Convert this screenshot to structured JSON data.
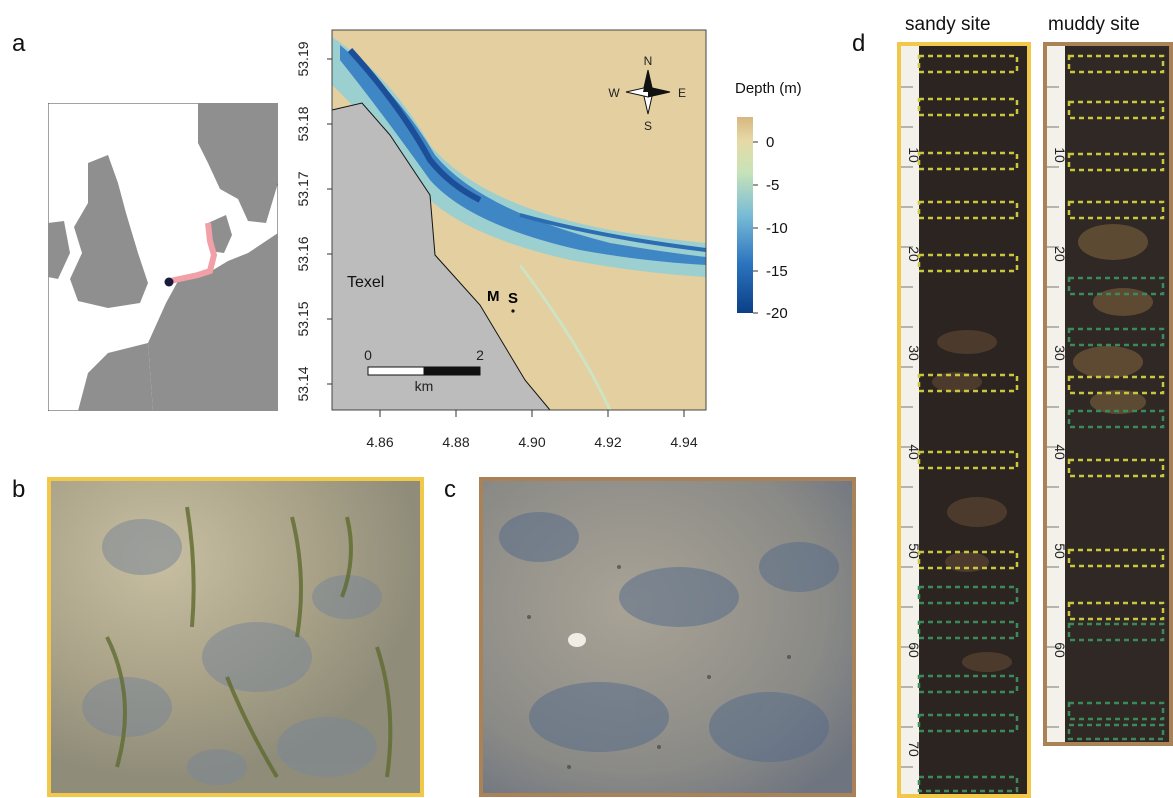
{
  "panels": {
    "a": "a",
    "b": "b",
    "c": "c",
    "d": "d"
  },
  "colors": {
    "sandy": "#f2c84b",
    "muddy": "#a98257",
    "land": "#bcbcbc",
    "europe_land": "#8f8f8f",
    "route": "#f0a0a6"
  },
  "map": {
    "y_ticks": [
      "53.19",
      "53.18",
      "53.17",
      "53.16",
      "53.15",
      "53.14"
    ],
    "x_ticks": [
      "4.86",
      "4.88",
      "4.90",
      "4.92",
      "4.94"
    ],
    "place": "Texel",
    "site_m": "M",
    "site_s": "S",
    "scale_min": "0",
    "scale_max": "2",
    "scale_unit": "km",
    "compass": {
      "n": "N",
      "s": "S",
      "e": "E",
      "w": "W"
    },
    "colorbar": {
      "title": "Depth (m)",
      "ticks": [
        "0",
        "-5",
        "-10",
        "-15",
        "-20"
      ],
      "range": [
        -20,
        2
      ]
    }
  },
  "cores": {
    "sandy_title": "sandy site",
    "muddy_title": "muddy site",
    "sandy_ticks": [
      "10",
      "20",
      "30",
      "40",
      "50",
      "60",
      "70"
    ],
    "muddy_ticks": [
      "10",
      "20",
      "30",
      "40",
      "50",
      "60"
    ]
  }
}
